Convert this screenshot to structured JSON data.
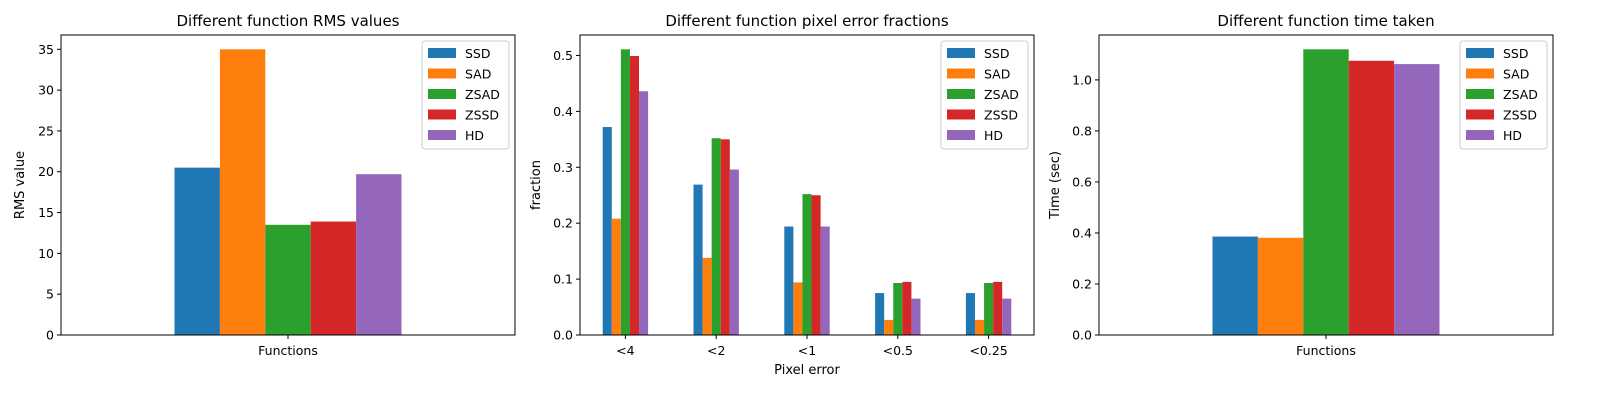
{
  "chart_data": [
    {
      "type": "bar",
      "title": "Different function RMS values",
      "xlabel": "",
      "ylabel": "RMS value",
      "categories": [
        "Functions"
      ],
      "series": [
        {
          "name": "SSD",
          "values": [
            20.5
          ]
        },
        {
          "name": "SAD",
          "values": [
            35.0
          ]
        },
        {
          "name": "ZSAD",
          "values": [
            13.5
          ]
        },
        {
          "name": "ZSSD",
          "values": [
            13.9
          ]
        },
        {
          "name": "HD",
          "values": [
            19.7
          ]
        }
      ],
      "ylim": [
        0,
        36.75
      ],
      "yticks": [
        0,
        5,
        10,
        15,
        20,
        25,
        30,
        35
      ],
      "ytick_labels": [
        "0",
        "5",
        "10",
        "15",
        "20",
        "25",
        "30",
        "35"
      ],
      "legend": "top-right",
      "grid": false
    },
    {
      "type": "bar",
      "title": "Different function pixel error fractions",
      "xlabel": "Pixel error",
      "ylabel": "fraction",
      "categories": [
        "<4",
        "<2",
        "<1",
        "<0.5",
        "<0.25"
      ],
      "series": [
        {
          "name": "SSD",
          "values": [
            0.372,
            0.269,
            0.194,
            0.075,
            0.075
          ]
        },
        {
          "name": "SAD",
          "values": [
            0.208,
            0.138,
            0.094,
            0.027,
            0.027
          ]
        },
        {
          "name": "ZSAD",
          "values": [
            0.511,
            0.352,
            0.252,
            0.093,
            0.093
          ]
        },
        {
          "name": "ZSSD",
          "values": [
            0.499,
            0.35,
            0.25,
            0.095,
            0.095
          ]
        },
        {
          "name": "HD",
          "values": [
            0.436,
            0.296,
            0.194,
            0.065,
            0.065
          ]
        }
      ],
      "ylim": [
        0,
        0.5366
      ],
      "yticks": [
        0,
        0.1,
        0.2,
        0.3,
        0.4,
        0.5
      ],
      "ytick_labels": [
        "0.0",
        "0.1",
        "0.2",
        "0.3",
        "0.4",
        "0.5"
      ],
      "legend": "top-right",
      "grid": false
    },
    {
      "type": "bar",
      "title": "Different function time taken",
      "xlabel": "",
      "ylabel": "Time (sec)",
      "categories": [
        "Functions"
      ],
      "series": [
        {
          "name": "SSD",
          "values": [
            0.386
          ]
        },
        {
          "name": "SAD",
          "values": [
            0.381
          ]
        },
        {
          "name": "ZSAD",
          "values": [
            1.12
          ]
        },
        {
          "name": "ZSSD",
          "values": [
            1.075
          ]
        },
        {
          "name": "HD",
          "values": [
            1.062
          ]
        }
      ],
      "ylim": [
        0,
        1.176
      ],
      "yticks": [
        0,
        0.2,
        0.4,
        0.6,
        0.8,
        1.0
      ],
      "ytick_labels": [
        "0.0",
        "0.2",
        "0.4",
        "0.6",
        "0.8",
        "1.0"
      ],
      "legend": "top-right",
      "grid": false
    }
  ],
  "series_colors": [
    "#1f77b4",
    "#ff7f0e",
    "#2ca02c",
    "#d62728",
    "#9467bd"
  ]
}
